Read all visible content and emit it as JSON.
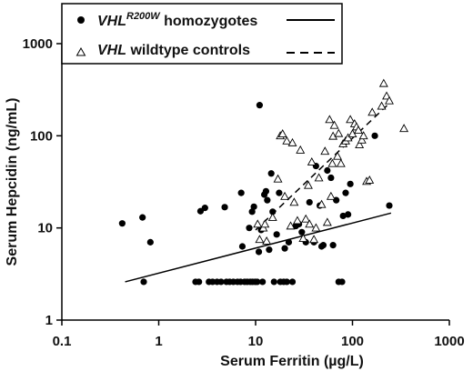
{
  "chart_data": {
    "type": "scatter",
    "x_scale": "log",
    "y_scale": "log",
    "xlim": [
      0.1,
      1000
    ],
    "ylim": [
      1,
      1000
    ],
    "xlabel": "Serum Ferritin (µg/L)",
    "ylabel": "Serum Hepcidin (ng/mL)",
    "x_ticks": [
      0.1,
      1,
      10,
      100,
      1000
    ],
    "x_tick_labels": [
      "0.1",
      "1",
      "10",
      "100",
      "1000"
    ],
    "y_ticks": [
      1,
      10,
      100,
      1000
    ],
    "y_tick_labels": [
      "1",
      "10",
      "100",
      "1000"
    ],
    "grid": false,
    "legend_position": "top-center",
    "series": [
      {
        "name": "VHL R200W homozygotes",
        "legend_italic": "VHL",
        "legend_superscript": "R200W",
        "legend_rest": " homozygotes",
        "marker": "filled-circle",
        "fit_line_style": "solid",
        "fit_line": [
          [
            0.45,
            2.6
          ],
          [
            250,
            14.5
          ]
        ],
        "points": [
          [
            0.42,
            11.2
          ],
          [
            0.68,
            13.0
          ],
          [
            0.7,
            2.6
          ],
          [
            0.82,
            7.0
          ],
          [
            2.4,
            2.6
          ],
          [
            2.6,
            2.6
          ],
          [
            2.7,
            15.2
          ],
          [
            3.0,
            16.5
          ],
          [
            3.3,
            2.6
          ],
          [
            3.6,
            2.6
          ],
          [
            4.0,
            2.6
          ],
          [
            4.4,
            2.6
          ],
          [
            4.8,
            16.8
          ],
          [
            5.0,
            2.6
          ],
          [
            5.4,
            2.6
          ],
          [
            5.9,
            2.6
          ],
          [
            6.5,
            2.6
          ],
          [
            7.0,
            2.6
          ],
          [
            7.1,
            24.0
          ],
          [
            7.3,
            6.3
          ],
          [
            7.7,
            2.6
          ],
          [
            8.2,
            2.6
          ],
          [
            8.6,
            10.0
          ],
          [
            8.8,
            2.6
          ],
          [
            9.2,
            15.0
          ],
          [
            9.3,
            2.6
          ],
          [
            9.6,
            17.0
          ],
          [
            9.9,
            2.6
          ],
          [
            10.4,
            2.6
          ],
          [
            10.8,
            5.5
          ],
          [
            11.0,
            215.0
          ],
          [
            11.4,
            9.5
          ],
          [
            11.8,
            2.6
          ],
          [
            12.3,
            23.0
          ],
          [
            12.8,
            25.0
          ],
          [
            13.2,
            20.0
          ],
          [
            13.8,
            5.8
          ],
          [
            14.5,
            39.0
          ],
          [
            15.0,
            15.0
          ],
          [
            15.5,
            2.6
          ],
          [
            16.5,
            8.5
          ],
          [
            17.5,
            24.0
          ],
          [
            18.0,
            2.6
          ],
          [
            19.5,
            2.6
          ],
          [
            20.0,
            6.0
          ],
          [
            21.0,
            2.6
          ],
          [
            22.0,
            7.0
          ],
          [
            24.0,
            2.6
          ],
          [
            26.0,
            10.5
          ],
          [
            28.0,
            11.0
          ],
          [
            30.0,
            9.0
          ],
          [
            33.0,
            7.0
          ],
          [
            36.0,
            19.0
          ],
          [
            40.0,
            7.0
          ],
          [
            42.0,
            47.0
          ],
          [
            46.0,
            17.5
          ],
          [
            48.0,
            6.3
          ],
          [
            50.0,
            6.5
          ],
          [
            55.0,
            42.0
          ],
          [
            60.0,
            35.0
          ],
          [
            63.0,
            6.5
          ],
          [
            68.0,
            20.0
          ],
          [
            72.0,
            2.6
          ],
          [
            78.0,
            2.6
          ],
          [
            80.0,
            13.5
          ],
          [
            85.0,
            24.0
          ],
          [
            90.0,
            14.0
          ],
          [
            95.0,
            30.0
          ],
          [
            170.0,
            100.0
          ],
          [
            240.0,
            17.5
          ]
        ]
      },
      {
        "name": "VHL wildtype controls",
        "legend_italic": "VHL",
        "legend_superscript": "",
        "legend_rest": "  wildtype controls",
        "marker": "open-triangle",
        "fit_line_style": "dashed",
        "fit_line": [
          [
            10,
            9.5
          ],
          [
            240,
            225
          ]
        ],
        "points": [
          [
            10.5,
            11.0
          ],
          [
            11.0,
            7.5
          ],
          [
            12.0,
            10.0
          ],
          [
            12.5,
            11.0
          ],
          [
            13.0,
            7.2
          ],
          [
            15.0,
            13.0
          ],
          [
            17.0,
            34.0
          ],
          [
            18.0,
            100.0
          ],
          [
            19.0,
            105.0
          ],
          [
            20.0,
            22.0
          ],
          [
            21.0,
            88.0
          ],
          [
            23.0,
            10.5
          ],
          [
            24.0,
            84.0
          ],
          [
            25.0,
            19.0
          ],
          [
            27.0,
            12.0
          ],
          [
            29.0,
            70.0
          ],
          [
            31.0,
            7.7
          ],
          [
            33.0,
            12.5
          ],
          [
            35.0,
            29.0
          ],
          [
            36.0,
            11.0
          ],
          [
            38.0,
            52.0
          ],
          [
            40.0,
            7.5
          ],
          [
            42.0,
            10.0
          ],
          [
            45.0,
            35.0
          ],
          [
            48.0,
            18.0
          ],
          [
            52.0,
            68.0
          ],
          [
            55.0,
            11.5
          ],
          [
            58.0,
            150.0
          ],
          [
            60.0,
            22.0
          ],
          [
            62.0,
            50.0
          ],
          [
            63.0,
            99.0
          ],
          [
            65.0,
            130.0
          ],
          [
            70.0,
            60.0
          ],
          [
            72.0,
            106.0
          ],
          [
            76.0,
            50.0
          ],
          [
            80.0,
            82.0
          ],
          [
            85.0,
            88.0
          ],
          [
            90.0,
            95.0
          ],
          [
            95.0,
            150.0
          ],
          [
            100.0,
            105.0
          ],
          [
            105.0,
            135.0
          ],
          [
            110.0,
            125.0
          ],
          [
            115.0,
            115.0
          ],
          [
            118.0,
            80.0
          ],
          [
            125.0,
            90.0
          ],
          [
            130.0,
            100.0
          ],
          [
            140.0,
            32.0
          ],
          [
            150.0,
            33.0
          ],
          [
            160.0,
            180.0
          ],
          [
            200.0,
            210.0
          ],
          [
            210.0,
            370.0
          ],
          [
            225.0,
            270.0
          ],
          [
            240.0,
            240.0
          ],
          [
            340.0,
            120.0
          ]
        ]
      }
    ]
  }
}
